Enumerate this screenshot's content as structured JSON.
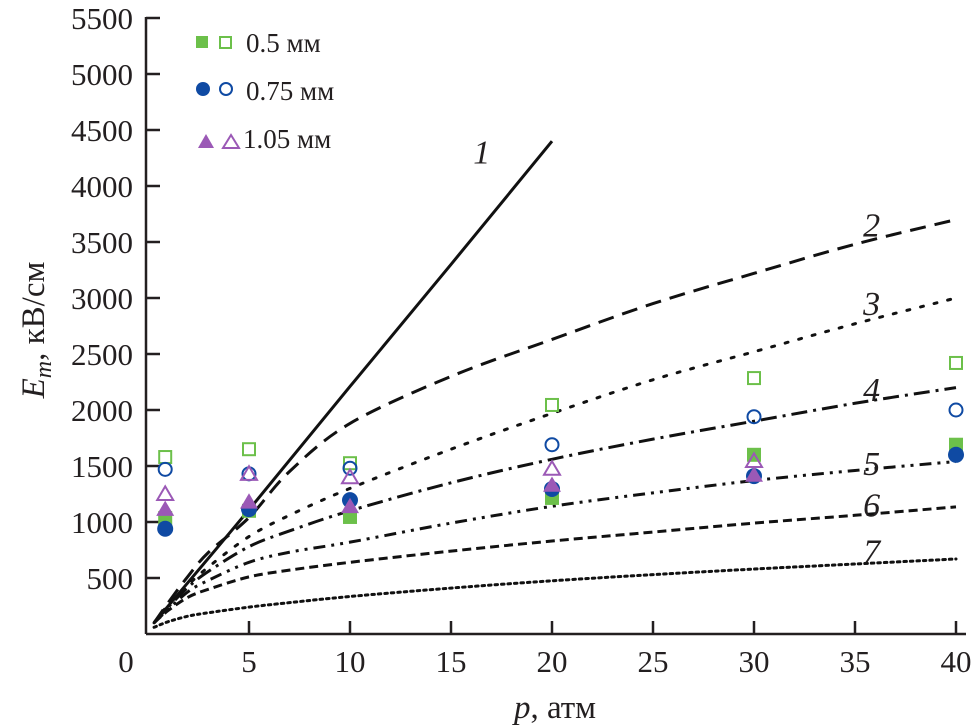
{
  "chart_data": {
    "type": "line",
    "title": "",
    "xlabel_var": "p",
    "xlabel_unit": ", атм",
    "ylabel_var": "E",
    "ylabel_sub": "m",
    "ylabel_unit": ", кВ/см",
    "xlim": [
      0,
      40
    ],
    "ylim": [
      0,
      5500
    ],
    "grid": false,
    "xticks": [
      0,
      5,
      10,
      15,
      20,
      25,
      30,
      35,
      40
    ],
    "yticks": [
      500,
      1000,
      1500,
      2000,
      2500,
      3000,
      3500,
      4000,
      4500,
      5000,
      5500
    ],
    "y_zero_label": "0",
    "legend_position": "top-left",
    "legend": [
      {
        "label": "0.5 мм",
        "marker": "square",
        "color": "#6cc04a"
      },
      {
        "label": "0.75 мм",
        "marker": "circle",
        "color": "#0f4aa3"
      },
      {
        "label": "1.05 мм",
        "marker": "triangle",
        "color": "#9b59b6"
      }
    ],
    "curves": [
      {
        "name": "1",
        "style": "solid",
        "label_at": [
          16.1,
          4200
        ],
        "x": [
          0.3,
          5,
          10,
          15,
          20
        ],
        "y": [
          100,
          1110,
          2210,
          3300,
          4400
        ]
      },
      {
        "name": "2",
        "style": "dashed-long",
        "label_at": [
          35.4,
          3550
        ],
        "x": [
          0.3,
          1,
          2,
          3,
          5,
          7,
          10,
          15,
          20,
          25,
          30,
          35,
          40
        ],
        "y": [
          100,
          280,
          520,
          730,
          1040,
          1450,
          1880,
          2300,
          2630,
          2950,
          3220,
          3480,
          3700
        ]
      },
      {
        "name": "3",
        "style": "dotted-sparse",
        "label_at": [
          35.4,
          2850
        ],
        "x": [
          0.3,
          1,
          2,
          3,
          5,
          7,
          10,
          15,
          20,
          25,
          30,
          35,
          40
        ],
        "y": [
          100,
          260,
          440,
          600,
          870,
          1060,
          1300,
          1650,
          1970,
          2270,
          2520,
          2770,
          3000
        ]
      },
      {
        "name": "4",
        "style": "dash-dot",
        "label_at": [
          35.4,
          2080
        ],
        "x": [
          0.3,
          1,
          2,
          3,
          5,
          7,
          10,
          15,
          20,
          25,
          30,
          35,
          40
        ],
        "y": [
          100,
          240,
          420,
          560,
          780,
          920,
          1100,
          1350,
          1560,
          1740,
          1900,
          2060,
          2200
        ]
      },
      {
        "name": "5",
        "style": "dash-dot-dot",
        "label_at": [
          35.4,
          1420
        ],
        "x": [
          0.3,
          1,
          2,
          3,
          5,
          7,
          10,
          15,
          20,
          25,
          30,
          35,
          40
        ],
        "y": [
          100,
          220,
          380,
          480,
          640,
          730,
          820,
          990,
          1140,
          1260,
          1370,
          1460,
          1540
        ]
      },
      {
        "name": "6",
        "style": "dashed-short",
        "label_at": [
          35.4,
          1050
        ],
        "x": [
          0.3,
          1,
          2,
          3,
          5,
          7,
          10,
          15,
          20,
          25,
          30,
          35,
          40
        ],
        "y": [
          100,
          210,
          330,
          400,
          510,
          570,
          640,
          740,
          830,
          910,
          990,
          1060,
          1135
        ]
      },
      {
        "name": "7",
        "style": "dotted-dense",
        "label_at": [
          35.4,
          640
        ],
        "x": [
          0.3,
          1,
          2,
          3,
          5,
          7,
          10,
          15,
          20,
          25,
          30,
          35,
          40
        ],
        "y": [
          60,
          110,
          160,
          190,
          240,
          280,
          335,
          410,
          475,
          530,
          580,
          625,
          670
        ]
      }
    ],
    "series": [
      {
        "name": "0.5 мм (filled)",
        "marker": "square",
        "filled": true,
        "color": "#6cc04a",
        "x": [
          1,
          5,
          10,
          20,
          30,
          40
        ],
        "y": [
          1035,
          1100,
          1045,
          1215,
          1600,
          1690
        ]
      },
      {
        "name": "0.5 мм (open)",
        "marker": "square",
        "filled": false,
        "color": "#6cc04a",
        "x": [
          1,
          5,
          10,
          20,
          30,
          40
        ],
        "y": [
          1580,
          1650,
          1525,
          2045,
          2285,
          2420
        ]
      },
      {
        "name": "0.75 мм (filled)",
        "marker": "circle",
        "filled": true,
        "color": "#0f4aa3",
        "x": [
          1,
          5,
          10,
          20,
          30,
          40
        ],
        "y": [
          940,
          1115,
          1195,
          1295,
          1410,
          1600
        ]
      },
      {
        "name": "0.75 мм (open)",
        "marker": "circle",
        "filled": false,
        "color": "#0f4aa3",
        "x": [
          1,
          5,
          10,
          20,
          30,
          40
        ],
        "y": [
          1470,
          1430,
          1480,
          1690,
          1940,
          2000
        ]
      },
      {
        "name": "1.05 мм (filled)",
        "marker": "triangle",
        "filled": true,
        "color": "#9b59b6",
        "x": [
          1,
          5,
          10,
          20,
          30
        ],
        "y": [
          1115,
          1180,
          1140,
          1330,
          1420
        ]
      },
      {
        "name": "1.05 мм (open)",
        "marker": "triangle",
        "filled": false,
        "color": "#9b59b6",
        "x": [
          1,
          5,
          10,
          20,
          30
        ],
        "y": [
          1250,
          1430,
          1400,
          1475,
          1545
        ]
      }
    ]
  }
}
